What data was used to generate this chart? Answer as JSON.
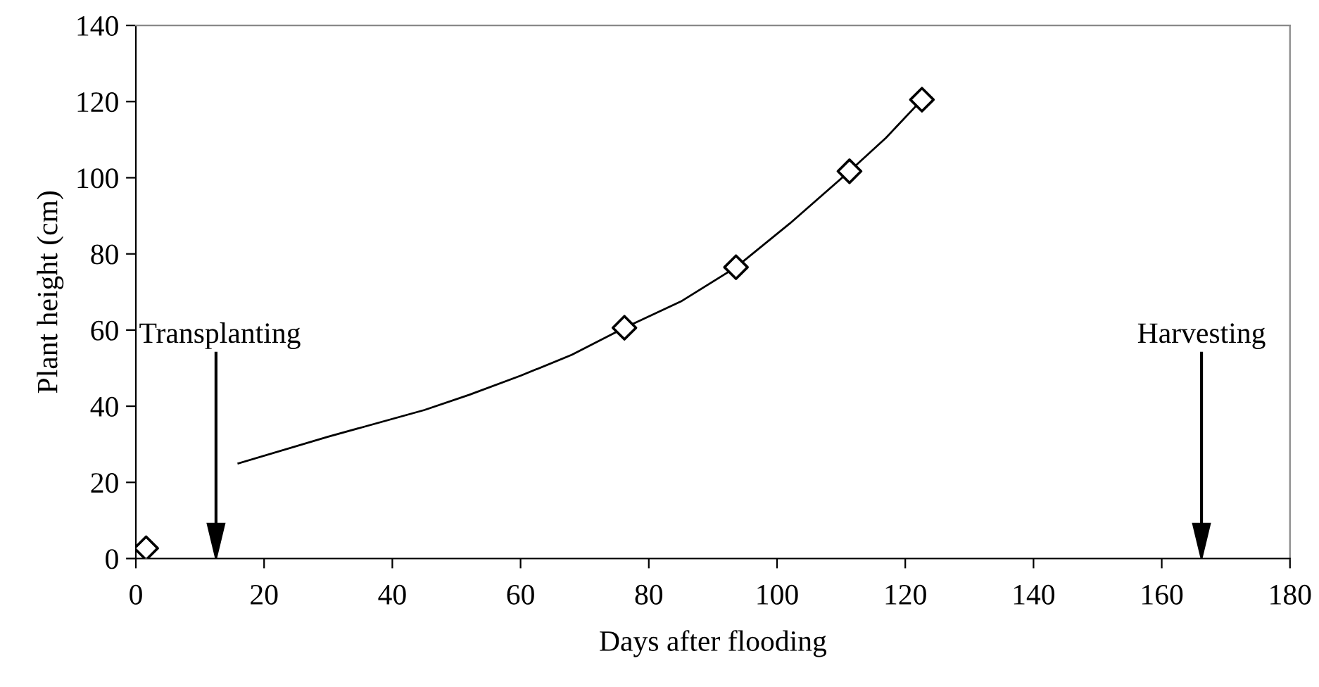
{
  "chart_data": {
    "type": "scatter",
    "xlabel": "Days after flooding",
    "ylabel": "Plant height (cm)",
    "xlim": [
      0,
      180
    ],
    "xticks": [
      0,
      20,
      40,
      60,
      80,
      100,
      120,
      140,
      160,
      180
    ],
    "ylim": [
      0,
      140
    ],
    "yticks": [
      0,
      20,
      40,
      60,
      80,
      100,
      120,
      140
    ],
    "grid": false,
    "legend": false,
    "marker": "diamond",
    "series": [
      {
        "color": "#000000",
        "x": [
          1.6,
          76.2,
          93.6,
          111.3,
          122.6
        ],
        "values": [
          2.7,
          60.6,
          76.5,
          101.7,
          120.5
        ]
      },
      {
        "type": "line",
        "color": "#000000",
        "marker": "none",
        "x": [
          16,
          30,
          45,
          52,
          60,
          68,
          76.2,
          85,
          93.6,
          102,
          111.3,
          117,
          122.6
        ],
        "values": [
          25,
          32,
          39,
          43,
          48,
          53.5,
          60.6,
          67.5,
          76.5,
          88,
          101.7,
          110.5,
          120.5
        ]
      }
    ],
    "ref_lines": [
      {
        "axis": "x",
        "value": 12.5,
        "label": "Transplanting"
      },
      {
        "axis": "x",
        "value": 166.2,
        "label": "Harvesting"
      }
    ]
  }
}
